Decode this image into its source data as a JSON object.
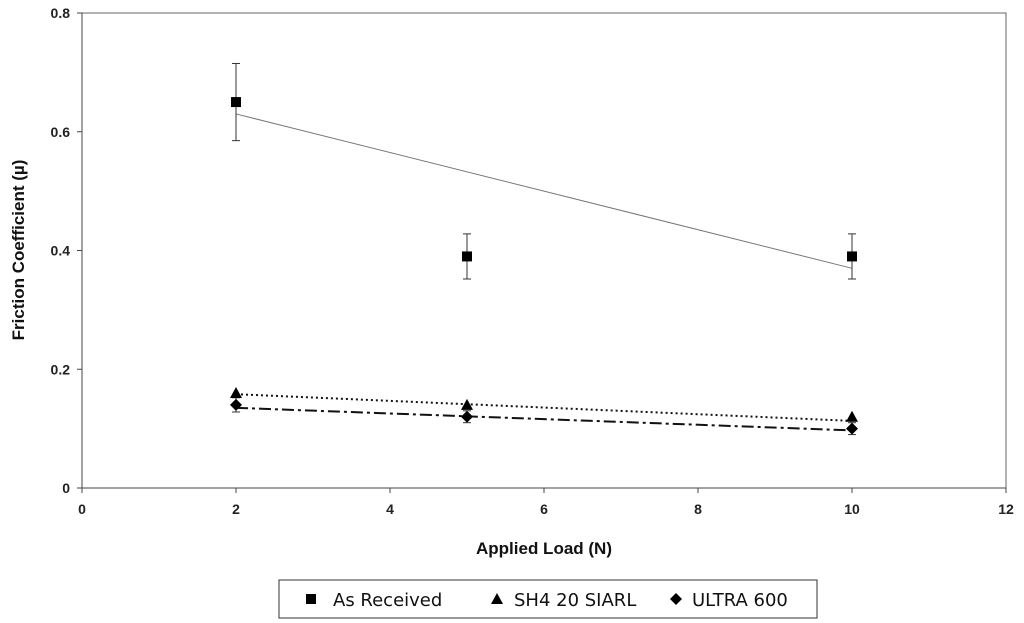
{
  "chart_data": {
    "type": "scatter",
    "title": "",
    "xlabel": "Applied Load (N)",
    "ylabel": "Friction Coefficient (µ)",
    "xlim": [
      0,
      12
    ],
    "ylim": [
      0,
      0.8
    ],
    "xticks": [
      0,
      2,
      4,
      6,
      8,
      10,
      12
    ],
    "yticks": [
      0,
      0.2,
      0.4,
      0.6,
      0.8
    ],
    "xtick_labels": [
      "0",
      "2",
      "4",
      "6",
      "8",
      "10",
      "12"
    ],
    "ytick_labels": [
      "0",
      "0.2",
      "0.4",
      "0.6",
      "0.8"
    ],
    "grid": false,
    "legend_position": "bottom",
    "series": [
      {
        "name": "As Received",
        "marker": "square",
        "x": [
          2,
          5,
          10
        ],
        "y": [
          0.65,
          0.39,
          0.39
        ],
        "error": [
          0.065,
          0.038,
          0.038
        ],
        "trendline": {
          "style": "solid",
          "color": "#777777",
          "y_start": 0.63,
          "y_end": 0.37
        }
      },
      {
        "name": "SH4 20 SIARL",
        "marker": "triangle",
        "x": [
          2,
          5,
          10
        ],
        "y": [
          0.16,
          0.14,
          0.12
        ],
        "error": [
          0,
          0,
          0
        ],
        "trendline": {
          "style": "dotted",
          "color": "#111111",
          "y_start": 0.158,
          "y_end": 0.113
        }
      },
      {
        "name": "ULTRA 600",
        "marker": "diamond",
        "x": [
          2,
          5,
          10
        ],
        "y": [
          0.14,
          0.12,
          0.1
        ],
        "error": [
          0.012,
          0.01,
          0.01
        ],
        "trendline": {
          "style": "dash-dot",
          "color": "#111111",
          "y_start": 0.135,
          "y_end": 0.097
        }
      }
    ]
  }
}
